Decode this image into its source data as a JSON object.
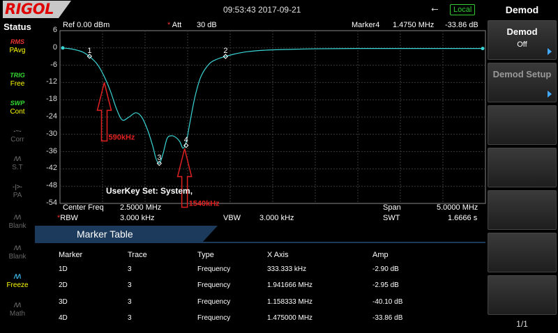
{
  "brand": "RIGOL",
  "datetime": "09:53:43 2017-09-21",
  "usb_icon": "usb-icon",
  "local_label": "Local",
  "status": {
    "title": "Status",
    "items": [
      {
        "icon": "RMS",
        "label": "PAvg",
        "state": "on"
      },
      {
        "icon": "TRIG",
        "label": "Free",
        "state": "green"
      },
      {
        "icon": "SWP",
        "label": "Cont",
        "state": "green"
      },
      {
        "icon": "-~-",
        "label": "Corr",
        "state": "off"
      },
      {
        "icon": "/\\/\\",
        "label": "S.T",
        "state": "off"
      },
      {
        "icon": "-|>-",
        "label": "PA",
        "state": "off"
      },
      {
        "icon": "/\\/\\",
        "label": "Blank",
        "state": "off"
      },
      {
        "icon": "/\\/\\",
        "label": "Blank",
        "state": "off"
      },
      {
        "icon": "/\\/\\",
        "label": "Freeze",
        "state": "blue"
      },
      {
        "icon": "/\\/\\",
        "label": "Math",
        "state": "off"
      }
    ]
  },
  "header": {
    "ref": "Ref  0.00 dBm",
    "att_label": "Att",
    "att_value": "30 dB",
    "marker_label": "Marker4",
    "marker_freq": "1.4750 MHz",
    "marker_amp": "-33.86 dB"
  },
  "colors": {
    "trace": "#3ad4d4",
    "grid": "#3a3a3a",
    "annotation": "#e02020",
    "accent": "#1c3a5c"
  },
  "chart_data": {
    "type": "line",
    "ylim": [
      -54,
      6
    ],
    "yticks": [
      "6",
      "0",
      "-6",
      "-12",
      "-18",
      "-24",
      "-30",
      "-36",
      "-42",
      "-48",
      "-54"
    ],
    "xlim": [
      0,
      5.0
    ],
    "x_unit": "MHz",
    "series": [
      {
        "x": [
          0,
          0.08,
          0.16,
          0.25,
          0.33,
          0.42,
          0.5,
          0.58,
          0.65,
          0.72,
          0.8,
          0.88,
          0.95,
          1.02,
          1.08,
          1.12,
          1.16,
          1.2,
          1.25,
          1.3,
          1.35,
          1.4,
          1.44,
          1.48,
          1.52,
          1.58,
          1.65,
          1.75,
          1.85,
          1.94,
          2.05,
          2.2,
          2.4,
          2.7,
          3.0,
          3.5,
          4.0,
          4.5,
          5.0
        ],
        "y": [
          0,
          -0.2,
          -0.6,
          -1.4,
          -2.9,
          -5.5,
          -9.5,
          -15,
          -21,
          -25,
          -24,
          -22.5,
          -24,
          -28.5,
          -34,
          -38.5,
          -40.1,
          -37,
          -31.5,
          -30.5,
          -31,
          -32.5,
          -34.8,
          -32.2,
          -26,
          -17,
          -10,
          -5.5,
          -3.8,
          -2.95,
          -2.1,
          -1.3,
          -0.8,
          -0.5,
          -0.3,
          -0.2,
          -0.2,
          -0.2,
          -0.2
        ]
      }
    ],
    "markers": [
      {
        "id": "1",
        "x": 0.333,
        "y": -2.9
      },
      {
        "id": "2",
        "x": 1.942,
        "y": -2.95
      },
      {
        "id": "3",
        "x": 1.158,
        "y": -40.1
      },
      {
        "id": "4",
        "x": 1.475,
        "y": -33.86
      }
    ],
    "annotations": [
      {
        "text": "590kHz",
        "x": 0.59,
        "y": -12
      },
      {
        "text": "1540kHz",
        "x": 1.54,
        "y": -35
      }
    ]
  },
  "overlay_text": "UserKey Set:    System,",
  "footer": {
    "center_label": "Center Freq",
    "center_value": "2.5000 MHz",
    "span_label": "Span",
    "span_value": "5.0000 MHz",
    "rbw_label": "RBW",
    "rbw_value": "3.000 kHz",
    "vbw_label": "VBW",
    "vbw_value": "3.000 kHz",
    "swt_label": "SWT",
    "swt_value": "1.6666 s"
  },
  "marker_table": {
    "title": "Marker Table",
    "headers": [
      "Marker",
      "Trace",
      "Type",
      "X Axis",
      "Amp"
    ],
    "rows": [
      [
        "1D",
        "3",
        "Frequency",
        "333.333 kHz",
        "-2.90 dB"
      ],
      [
        "2D",
        "3",
        "Frequency",
        "1.941666 MHz",
        "-2.95 dB"
      ],
      [
        "3D",
        "3",
        "Frequency",
        "1.158333 MHz",
        "-40.10 dB"
      ],
      [
        "4D",
        "3",
        "Frequency",
        "1.475000 MHz",
        "-33.86 dB"
      ]
    ]
  },
  "menu": {
    "title": "Demod",
    "buttons": [
      {
        "label": "Demod",
        "value": "Off",
        "arrow": true,
        "dim": false
      },
      {
        "label": "Demod Setup",
        "value": "",
        "arrow": true,
        "dim": true
      },
      {
        "label": "",
        "value": "",
        "arrow": false,
        "dim": false
      },
      {
        "label": "",
        "value": "",
        "arrow": false,
        "dim": false
      },
      {
        "label": "",
        "value": "",
        "arrow": false,
        "dim": false
      },
      {
        "label": "",
        "value": "",
        "arrow": false,
        "dim": false
      },
      {
        "label": "",
        "value": "",
        "arrow": false,
        "dim": false
      }
    ],
    "page": "1/1"
  }
}
